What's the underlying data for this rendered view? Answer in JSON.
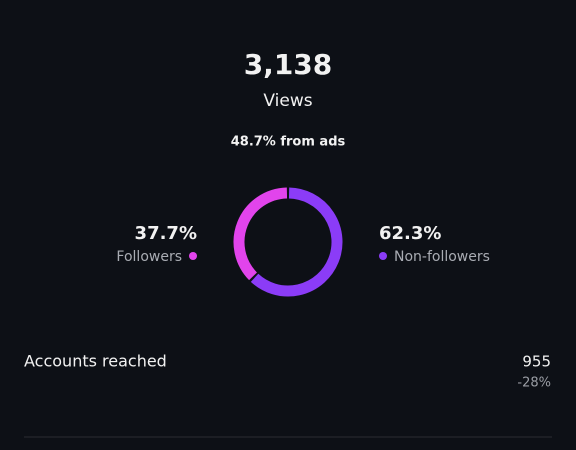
{
  "views": {
    "value": "3,138",
    "label": "Views"
  },
  "ads_note": "48.7% from ads",
  "chart_data": {
    "type": "donut",
    "categories": [
      "Followers",
      "Non-followers"
    ],
    "values": [
      37.7,
      62.3
    ],
    "value_labels": [
      "37.7%",
      "62.3%"
    ],
    "colors": [
      "#e244ec",
      "#8b3cf7"
    ]
  },
  "accounts_reached": {
    "label": "Accounts reached",
    "value": "955",
    "change": "-28%"
  }
}
